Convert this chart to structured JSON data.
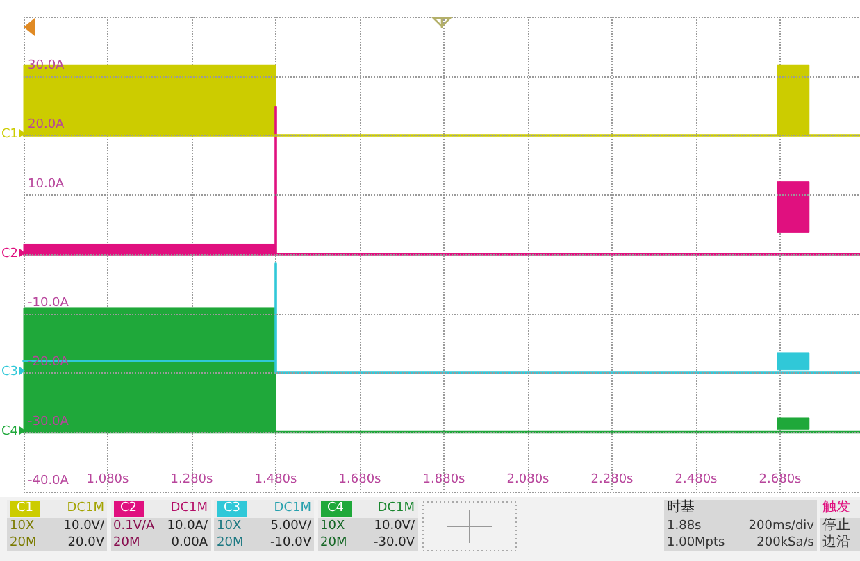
{
  "chart_data": {
    "type": "line",
    "xlim": [
      0.88,
      2.87
    ],
    "xticks": [
      {
        "value": 0.88,
        "label": null
      },
      {
        "value": 1.08,
        "label": "1.080s"
      },
      {
        "value": 1.28,
        "label": "1.280s"
      },
      {
        "value": 1.48,
        "label": "1.480s"
      },
      {
        "value": 1.68,
        "label": "1.680s"
      },
      {
        "value": 1.88,
        "label": "1.880s"
      },
      {
        "value": 2.08,
        "label": "2.080s"
      },
      {
        "value": 2.28,
        "label": "2.280s"
      },
      {
        "value": 2.48,
        "label": "2.480s"
      },
      {
        "value": 2.68,
        "label": "2.680s"
      }
    ],
    "ylim": [
      -40,
      40
    ],
    "yticks": [
      {
        "value": 40,
        "label": null
      },
      {
        "value": 30,
        "label": "30.0A"
      },
      {
        "value": 20,
        "label": "20.0A"
      },
      {
        "value": 10,
        "label": "10.0A"
      },
      {
        "value": 0,
        "label": null
      },
      {
        "value": -10,
        "label": "-10.0A"
      },
      {
        "value": -20,
        "label": "-20.0A"
      },
      {
        "value": -30,
        "label": "-30.0A"
      },
      {
        "value": -40,
        "label": "-40.0A"
      }
    ],
    "grid": true,
    "marker": "none",
    "legend": "left",
    "series": [
      {
        "name": "C1",
        "color": "#cccc00",
        "x": [
          0.88,
          1.48,
          1.48,
          2.673,
          2.673,
          2.749,
          2.749,
          2.87
        ],
        "values": [
          20,
          20,
          20,
          20,
          20,
          20,
          20,
          20
        ],
        "lower": [
          20,
          20,
          null,
          null,
          20,
          20,
          null,
          null
        ],
        "upper": [
          31.9,
          31.9,
          null,
          null,
          31.9,
          31.9,
          null,
          null
        ]
      },
      {
        "name": "C2",
        "color": "#e0107f",
        "x": [
          0.88,
          1.48,
          1.48,
          1.48,
          2.673,
          2.673,
          2.749,
          2.749,
          2.87
        ],
        "values": [
          0,
          0,
          24.8,
          0,
          0,
          0,
          0,
          0,
          0
        ],
        "lower": [
          0,
          0,
          null,
          null,
          null,
          3.7,
          3.7,
          null,
          null
        ],
        "upper": [
          1.7,
          1.7,
          null,
          null,
          null,
          12.2,
          12.2,
          null,
          null
        ]
      },
      {
        "name": "C3",
        "color": "#30c8d8",
        "x": [
          0.88,
          1.48,
          1.48,
          1.48,
          2.673,
          2.673,
          2.749,
          2.749,
          2.87
        ],
        "values": [
          -18,
          -18,
          -1.6,
          -20,
          -20,
          -20,
          -20,
          -20,
          -20
        ],
        "lower": [
          null,
          null,
          null,
          null,
          null,
          -19.5,
          -19.5,
          null,
          null
        ],
        "upper": [
          null,
          null,
          null,
          null,
          null,
          -16.6,
          -16.6,
          null,
          null
        ]
      },
      {
        "name": "C4",
        "color": "#1fa83a",
        "x": [
          0.88,
          1.48,
          1.48,
          2.673,
          2.673,
          2.749,
          2.749,
          2.87
        ],
        "values": [
          -30,
          -30,
          -30,
          -30,
          -30,
          -30,
          -30,
          -30
        ],
        "lower": [
          -30,
          -30,
          null,
          null,
          -29.5,
          -29.5,
          null,
          null
        ],
        "upper": [
          -9,
          -9,
          null,
          null,
          -27.6,
          -27.6,
          null,
          null
        ]
      }
    ],
    "annotations": [
      "DC1M",
      "10X",
      "10.0V/",
      "20M",
      "20.0V",
      "DC1M",
      "0.1V/A",
      "10.0A/",
      "20M",
      "0.00A",
      "DC1M",
      "10X",
      "5.00V/",
      "20M",
      "-10.0V",
      "DC1M",
      "10X",
      "10.0V/",
      "20M",
      "-30.0V",
      "时基",
      "1.88s",
      "200ms/div",
      "1.00Mpts",
      "200kSa/s",
      "触发",
      "停止",
      "边沿"
    ]
  }
}
